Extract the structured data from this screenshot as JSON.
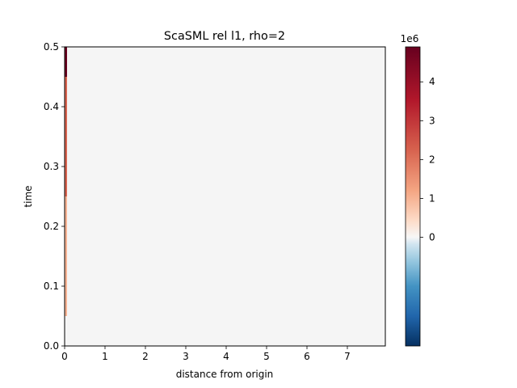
{
  "chart_data": {
    "type": "heatmap",
    "title": "ScaSML rel l1, rho=2",
    "xlabel": "distance from origin",
    "ylabel": "time",
    "xlim": [
      0,
      7.94
    ],
    "ylim": [
      0,
      0.5
    ],
    "x_ticks": [
      "0",
      "1",
      "2",
      "3",
      "4",
      "5",
      "6",
      "7"
    ],
    "y_ticks": [
      "0.0",
      "0.1",
      "0.2",
      "0.3",
      "0.4",
      "0.5"
    ],
    "colormap": "RdBu_r",
    "background_value": 0,
    "cells": [
      {
        "x0": 0,
        "x1": 0.06,
        "y0": 0.05,
        "y1": 0.25,
        "value": 1000000
      },
      {
        "x0": 0,
        "x1": 0.06,
        "y0": 0.25,
        "y1": 0.45,
        "value": 2200000
      },
      {
        "x0": 0,
        "x1": 0.06,
        "y0": 0.45,
        "y1": 0.5,
        "value": 4900000
      }
    ],
    "colorbar": {
      "offset_label": "1e6",
      "ticks": [
        "0",
        "1",
        "2",
        "3",
        "4"
      ],
      "tick_values": [
        0,
        1000000,
        2000000,
        3000000,
        4000000
      ],
      "vmin": -2800000,
      "vmax": 4900000
    }
  }
}
